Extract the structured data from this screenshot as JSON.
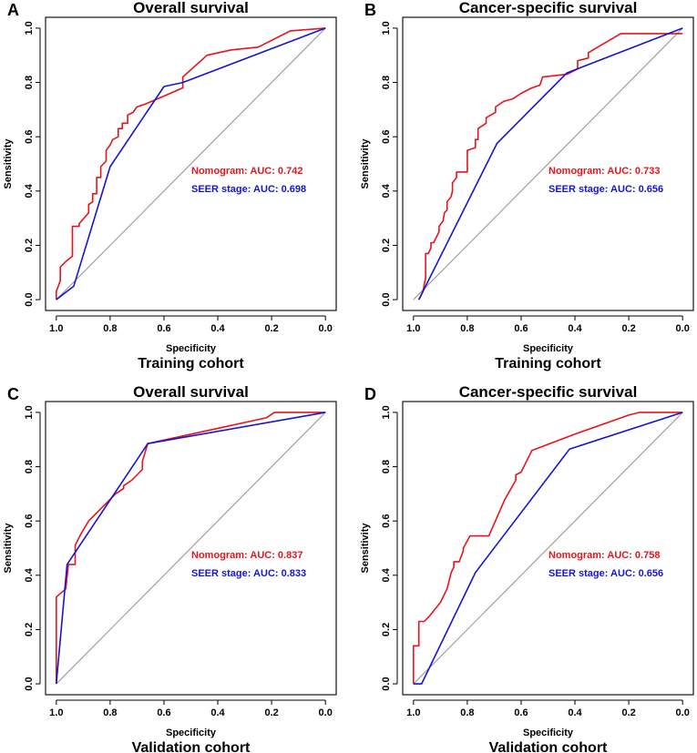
{
  "colors": {
    "nomogram": "#e8141c",
    "seer": "#1515d2",
    "diagonal": "#9a9a9a",
    "axis": "#000000"
  },
  "chart_data": [
    {
      "panel_label": "A",
      "type": "line",
      "title": "Overall survival",
      "xlabel": "Specificity",
      "ylabel": "Sensitivity",
      "cohort": "Training cohort",
      "xlim": [
        1.0,
        0.0
      ],
      "ylim": [
        0.0,
        1.0
      ],
      "x_ticks": [
        "1.0",
        "0.8",
        "0.6",
        "0.4",
        "0.2",
        "0.0"
      ],
      "y_ticks": [
        "0.0",
        "0.2",
        "0.4",
        "0.6",
        "0.8",
        "1.0"
      ],
      "legend": [
        "Nomogram: AUC: 0.742",
        "SEER stage: AUC: 0.698"
      ],
      "series": [
        {
          "name": "Nomogram",
          "color_key": "nomogram",
          "x": [
            1.0,
            1.0,
            0.985,
            0.985,
            0.965,
            0.94,
            0.94,
            0.915,
            0.915,
            0.88,
            0.88,
            0.865,
            0.865,
            0.85,
            0.85,
            0.835,
            0.835,
            0.815,
            0.815,
            0.8,
            0.79,
            0.77,
            0.77,
            0.755,
            0.755,
            0.735,
            0.735,
            0.715,
            0.7,
            0.67,
            0.6,
            0.53,
            0.53,
            0.44,
            0.35,
            0.25,
            0.13,
            0.0
          ],
          "y": [
            0.0,
            0.03,
            0.07,
            0.12,
            0.14,
            0.16,
            0.27,
            0.27,
            0.28,
            0.32,
            0.35,
            0.36,
            0.39,
            0.39,
            0.45,
            0.45,
            0.49,
            0.51,
            0.55,
            0.57,
            0.59,
            0.6,
            0.63,
            0.63,
            0.65,
            0.65,
            0.68,
            0.69,
            0.71,
            0.72,
            0.75,
            0.78,
            0.82,
            0.9,
            0.92,
            0.93,
            0.99,
            1.0
          ]
        },
        {
          "name": "SEER stage",
          "color_key": "seer",
          "x": [
            1.0,
            0.935,
            0.8,
            0.6,
            0.53,
            0.0
          ],
          "y": [
            0.0,
            0.05,
            0.49,
            0.785,
            0.8,
            1.0
          ]
        }
      ]
    },
    {
      "panel_label": "B",
      "type": "line",
      "title": "Cancer-specific survival",
      "xlabel": "Specificity",
      "ylabel": "Sensitivity",
      "cohort": "Training cohort",
      "xlim": [
        1.0,
        0.0
      ],
      "ylim": [
        0.0,
        1.0
      ],
      "x_ticks": [
        "1.0",
        "0.8",
        "0.6",
        "0.4",
        "0.2",
        "0.0"
      ],
      "y_ticks": [
        "0.0",
        "0.2",
        "0.4",
        "0.6",
        "0.8",
        "1.0"
      ],
      "legend": [
        "Nomogram: AUC: 0.733",
        "SEER stage: AUC: 0.656"
      ],
      "series": [
        {
          "name": "Nomogram",
          "color_key": "nomogram",
          "x": [
            0.98,
            0.965,
            0.955,
            0.955,
            0.945,
            0.935,
            0.935,
            0.925,
            0.905,
            0.905,
            0.89,
            0.885,
            0.875,
            0.875,
            0.86,
            0.855,
            0.855,
            0.84,
            0.84,
            0.8,
            0.8,
            0.77,
            0.77,
            0.76,
            0.76,
            0.73,
            0.73,
            0.695,
            0.695,
            0.68,
            0.665,
            0.63,
            0.6,
            0.56,
            0.53,
            0.52,
            0.43,
            0.39,
            0.39,
            0.35,
            0.35,
            0.23,
            0.0
          ],
          "y": [
            0.0,
            0.03,
            0.08,
            0.17,
            0.17,
            0.19,
            0.21,
            0.21,
            0.25,
            0.27,
            0.29,
            0.32,
            0.33,
            0.36,
            0.38,
            0.4,
            0.43,
            0.45,
            0.47,
            0.47,
            0.55,
            0.56,
            0.59,
            0.59,
            0.63,
            0.65,
            0.67,
            0.69,
            0.71,
            0.72,
            0.73,
            0.74,
            0.76,
            0.78,
            0.79,
            0.82,
            0.83,
            0.85,
            0.88,
            0.89,
            0.91,
            0.98,
            0.98
          ]
        },
        {
          "name": "SEER stage",
          "color_key": "seer",
          "x": [
            0.98,
            0.69,
            0.43,
            0.0
          ],
          "y": [
            0.0,
            0.575,
            0.835,
            1.0
          ]
        }
      ]
    },
    {
      "panel_label": "C",
      "type": "line",
      "title": "Overall survival",
      "xlabel": "Specificity",
      "ylabel": "Sensitivity",
      "cohort": "Validation cohort",
      "xlim": [
        1.0,
        0.0
      ],
      "ylim": [
        0.0,
        1.0
      ],
      "x_ticks": [
        "1.0",
        "0.8",
        "0.6",
        "0.4",
        "0.2",
        "0.0"
      ],
      "y_ticks": [
        "0.0",
        "0.2",
        "0.4",
        "0.6",
        "0.8",
        "1.0"
      ],
      "legend": [
        "Nomogram: AUC: 0.837",
        "SEER stage: AUC: 0.833"
      ],
      "series": [
        {
          "name": "Nomogram",
          "color_key": "nomogram",
          "x": [
            1.0,
            1.0,
            0.965,
            0.955,
            0.955,
            0.93,
            0.93,
            0.91,
            0.88,
            0.86,
            0.78,
            0.75,
            0.75,
            0.72,
            0.68,
            0.68,
            0.66,
            0.22,
            0.19,
            0.0
          ],
          "y": [
            0.0,
            0.32,
            0.35,
            0.44,
            0.44,
            0.44,
            0.51,
            0.55,
            0.6,
            0.62,
            0.7,
            0.72,
            0.73,
            0.75,
            0.79,
            0.82,
            0.885,
            0.98,
            1.0,
            1.0
          ]
        },
        {
          "name": "SEER stage",
          "color_key": "seer",
          "x": [
            1.0,
            0.96,
            0.66,
            0.0
          ],
          "y": [
            0.0,
            0.44,
            0.885,
            1.0
          ]
        }
      ]
    },
    {
      "panel_label": "D",
      "type": "line",
      "title": "Cancer-specific survival",
      "xlabel": "Specificity",
      "ylabel": "Sensitivity",
      "cohort": "Validation cohort",
      "xlim": [
        1.0,
        0.0
      ],
      "ylim": [
        0.0,
        1.0
      ],
      "x_ticks": [
        "1.0",
        "0.8",
        "0.6",
        "0.4",
        "0.2",
        "0.0"
      ],
      "y_ticks": [
        "0.0",
        "0.2",
        "0.4",
        "0.6",
        "0.8",
        "1.0"
      ],
      "legend": [
        "Nomogram: AUC: 0.758",
        "SEER stage: AUC: 0.656"
      ],
      "series": [
        {
          "name": "Nomogram",
          "color_key": "nomogram",
          "x": [
            1.0,
            1.0,
            0.98,
            0.98,
            0.96,
            0.94,
            0.9,
            0.875,
            0.865,
            0.86,
            0.85,
            0.85,
            0.83,
            0.815,
            0.815,
            0.79,
            0.72,
            0.7,
            0.66,
            0.62,
            0.62,
            0.6,
            0.58,
            0.56,
            0.4,
            0.2,
            0.16,
            0.0
          ],
          "y": [
            0.0,
            0.14,
            0.14,
            0.23,
            0.23,
            0.25,
            0.3,
            0.35,
            0.39,
            0.41,
            0.43,
            0.45,
            0.45,
            0.49,
            0.5,
            0.545,
            0.545,
            0.59,
            0.68,
            0.75,
            0.77,
            0.78,
            0.82,
            0.86,
            0.92,
            0.99,
            1.0,
            1.0
          ]
        },
        {
          "name": "SEER stage",
          "color_key": "seer",
          "x": [
            1.0,
            0.97,
            0.77,
            0.42,
            0.0
          ],
          "y": [
            0.0,
            0.0,
            0.41,
            0.865,
            1.0
          ]
        }
      ]
    }
  ]
}
